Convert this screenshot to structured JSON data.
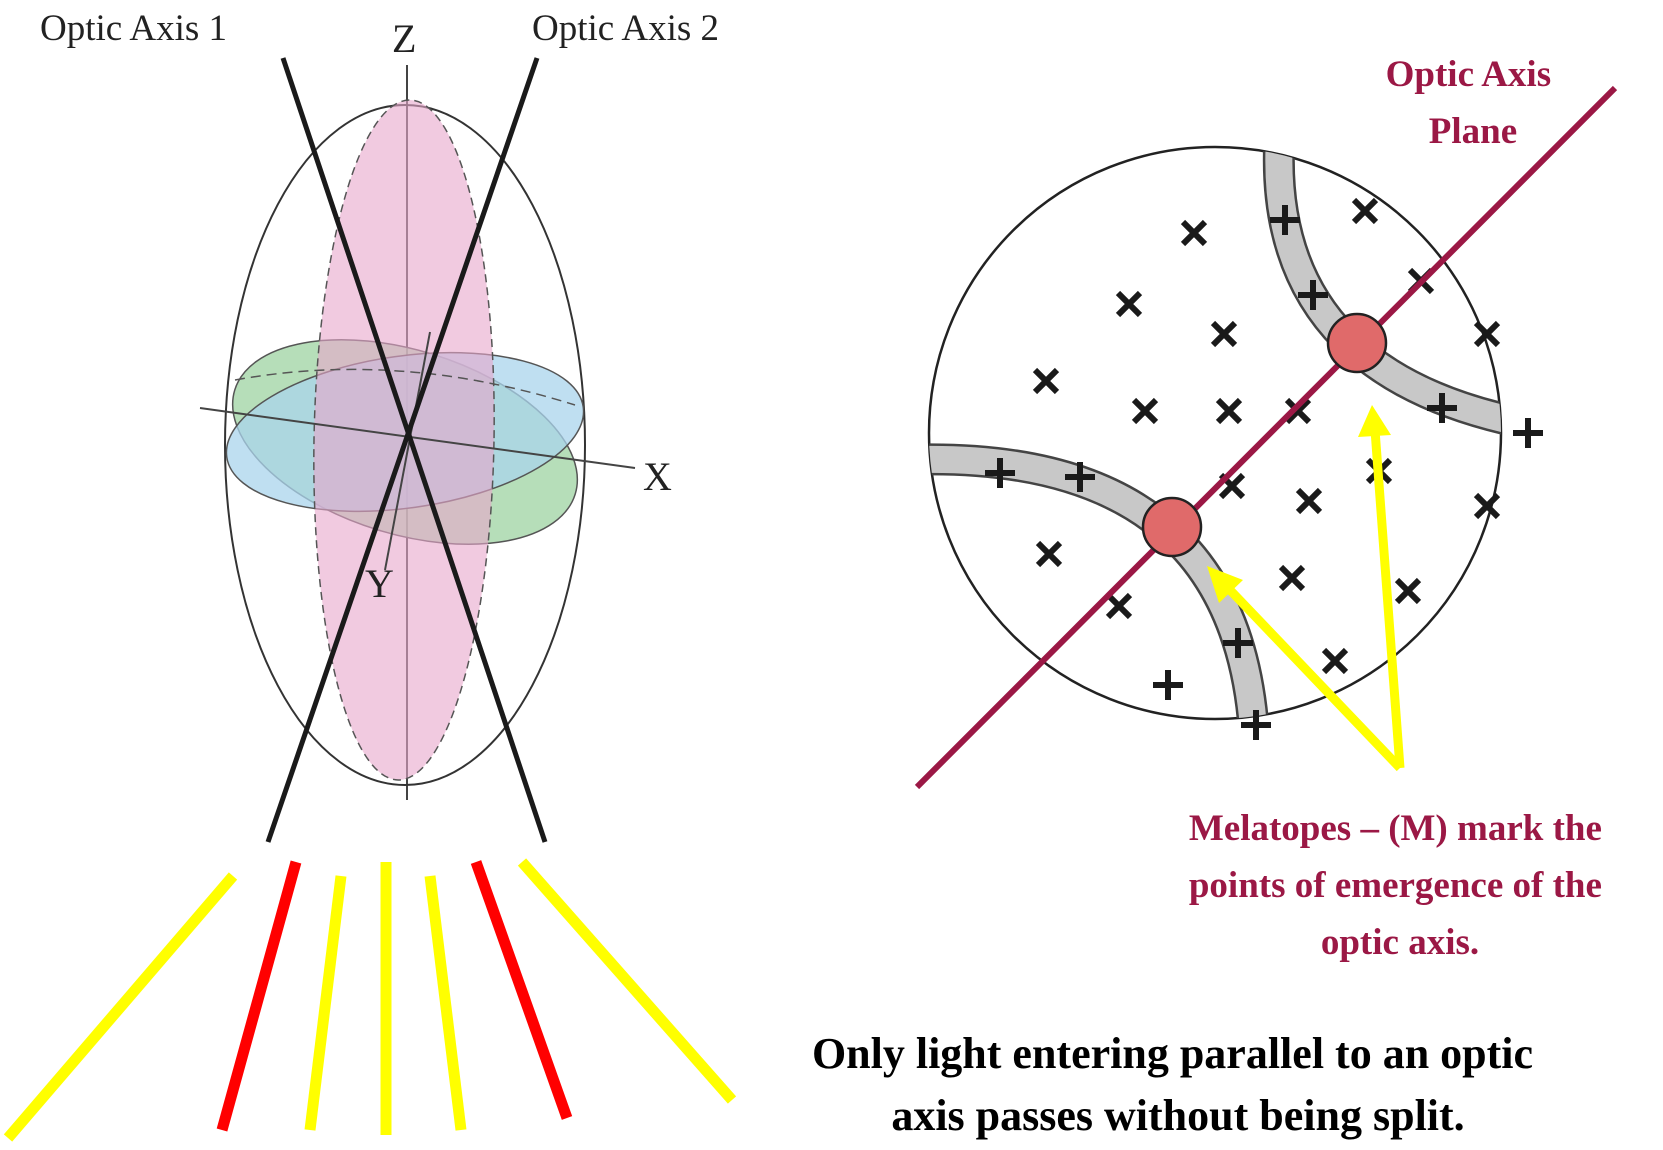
{
  "ellipsoid_diagram": {
    "optic_axis_1_label": "Optic Axis 1",
    "optic_axis_2_label": "Optic Axis 2",
    "z_label": "Z",
    "x_label": "X",
    "y_label": "Y"
  },
  "interference_figure": {
    "optic_axis_plane_label_lines": [
      "Optic Axis",
      "Plane"
    ],
    "melatopes_caption_lines": [
      "Melatopes – (M) mark the",
      "points of emergence of the",
      "optic axis."
    ]
  },
  "bottom_caption_lines": [
    "Only light entering parallel to an optic",
    "axis passes without being split."
  ],
  "colors": {
    "maroon": "#9b1845",
    "yellow": "#ffff00",
    "red": "#ff0000",
    "pink_plane": "#e8a6cc",
    "green_plane": "#9ed3a2",
    "blue_plane": "#a9d4ec",
    "isogyre_gray": "#c8c8c8",
    "melatope_red": "#e06a6a"
  }
}
